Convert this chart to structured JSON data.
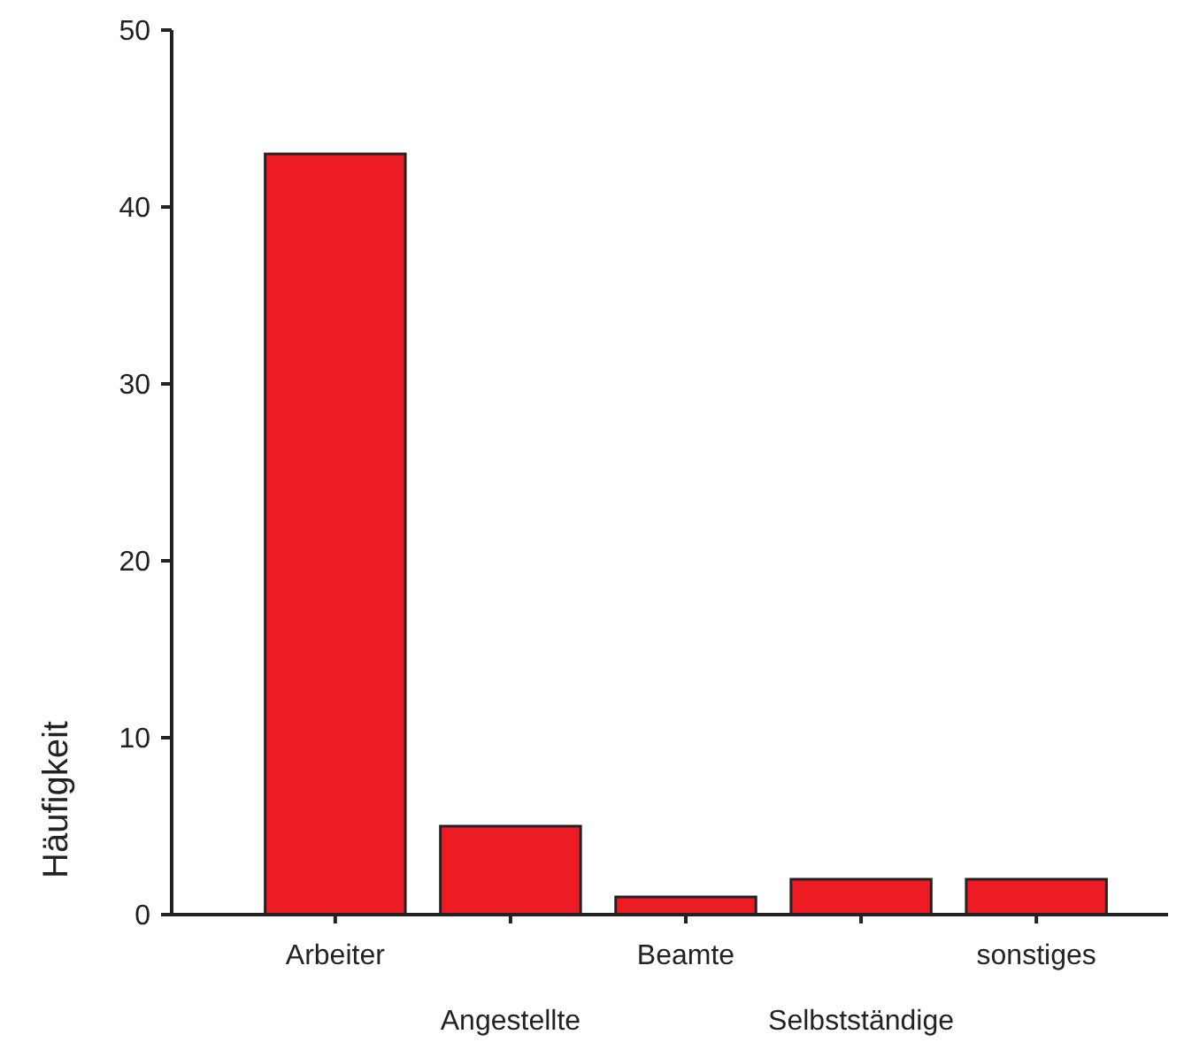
{
  "chart_data": {
    "type": "bar",
    "ylabel": "Häufigkeit",
    "categories": [
      "Arbeiter",
      "Angestellte",
      "Beamte",
      "Selbstständige",
      "sonstiges"
    ],
    "values": [
      43,
      5,
      1,
      2,
      2
    ],
    "color": "#ed1c24",
    "ylim": [
      0,
      50
    ],
    "yticks": [
      0,
      10,
      20,
      30,
      40,
      50
    ],
    "grid": false
  }
}
